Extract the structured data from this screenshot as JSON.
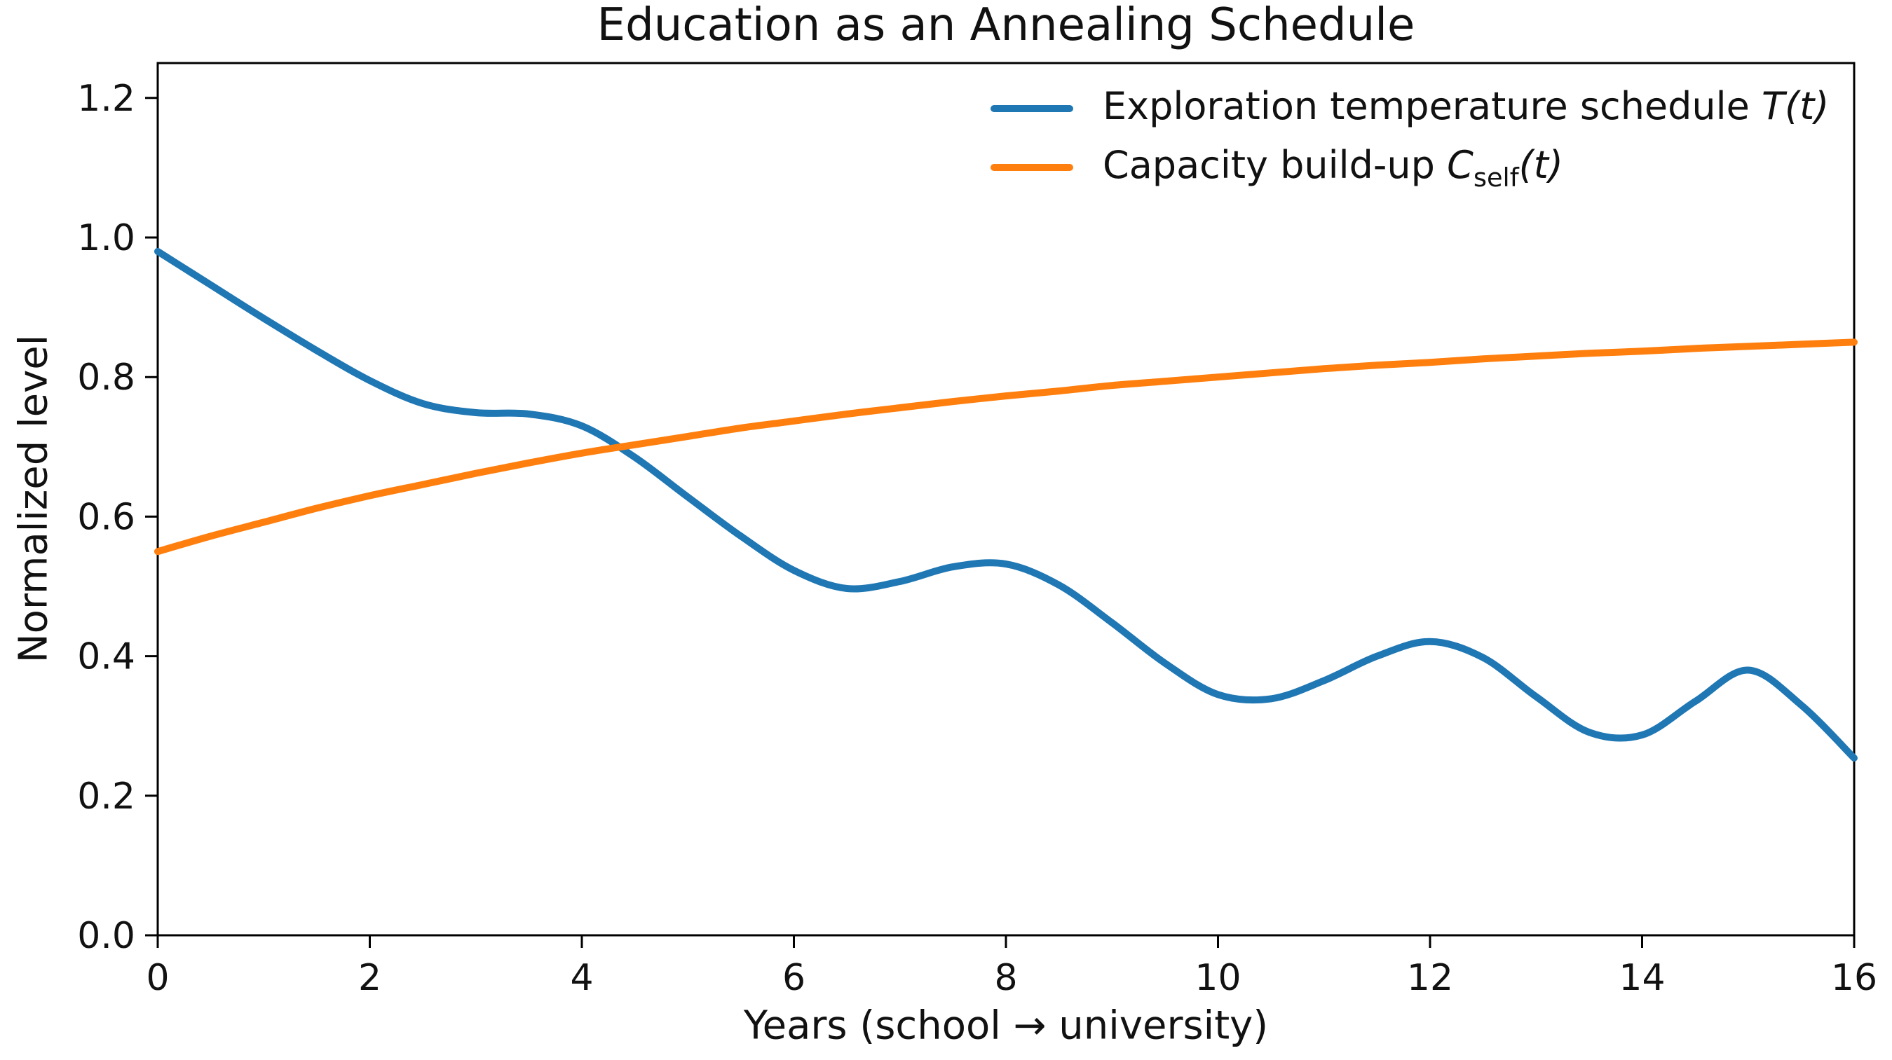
{
  "title": "Education as an Annealing Schedule",
  "colors": {
    "temperature_line": "#1f77b4",
    "capacity_line": "#ff7f0e",
    "axis": "#000000",
    "text": "#111111",
    "background": "#ffffff"
  },
  "legend": {
    "position": "upper right",
    "frame": false,
    "items": [
      {
        "name": "exploration-temperature",
        "label_text": "Exploration temperature schedule ",
        "symbol": "T",
        "subscript": "",
        "suffix": "(t)",
        "color": "#1f77b4"
      },
      {
        "name": "capacity-buildup",
        "label_text": "Capacity build-up ",
        "symbol": "C",
        "subscript": "self",
        "suffix": "(t)",
        "color": "#ff7f0e"
      }
    ]
  },
  "chart_data": {
    "type": "line",
    "title": "Education as an Annealing Schedule",
    "xlabel": "Years (school → university)",
    "ylabel": "Normalized level",
    "xlim": [
      0,
      16
    ],
    "ylim": [
      0,
      1.25
    ],
    "grid": false,
    "legend_position": "upper right",
    "xticks": {
      "values": [
        0,
        2,
        4,
        6,
        8,
        10,
        12,
        14,
        16
      ],
      "labels": [
        "0",
        "2",
        "4",
        "6",
        "8",
        "10",
        "12",
        "14",
        "16"
      ]
    },
    "yticks": {
      "values": [
        0.0,
        0.2,
        0.4,
        0.6,
        0.8,
        1.0,
        1.2
      ],
      "labels": [
        "0.0",
        "0.2",
        "0.4",
        "0.6",
        "0.8",
        "1.0",
        "1.2"
      ]
    },
    "x": [
      0,
      0.5,
      1,
      1.5,
      2,
      2.5,
      3,
      3.5,
      4,
      4.5,
      5,
      5.5,
      6,
      6.5,
      7,
      7.5,
      8,
      8.5,
      9,
      9.5,
      10,
      10.5,
      11,
      11.5,
      12,
      12.5,
      13,
      13.5,
      14,
      14.5,
      15,
      15.5,
      16
    ],
    "series": [
      {
        "name": "exploration-temperature-schedule",
        "label": "Exploration temperature schedule T(t)",
        "color": "#1f77b4",
        "values": [
          0.98,
          0.932,
          0.884,
          0.838,
          0.795,
          0.762,
          0.749,
          0.747,
          0.73,
          0.685,
          0.628,
          0.572,
          0.523,
          0.497,
          0.507,
          0.528,
          0.532,
          0.502,
          0.448,
          0.39,
          0.345,
          0.339,
          0.365,
          0.4,
          0.421,
          0.398,
          0.342,
          0.291,
          0.287,
          0.335,
          0.38,
          0.33,
          0.254
        ]
      },
      {
        "name": "capacity-build-up",
        "label": "Capacity build-up C_self(t)",
        "color": "#ff7f0e",
        "values": [
          0.55,
          0.572,
          0.592,
          0.612,
          0.63,
          0.646,
          0.662,
          0.677,
          0.691,
          0.703,
          0.715,
          0.727,
          0.737,
          0.747,
          0.756,
          0.765,
          0.773,
          0.78,
          0.788,
          0.794,
          0.8,
          0.806,
          0.812,
          0.817,
          0.821,
          0.826,
          0.83,
          0.834,
          0.837,
          0.841,
          0.844,
          0.847,
          0.85
        ]
      }
    ]
  }
}
